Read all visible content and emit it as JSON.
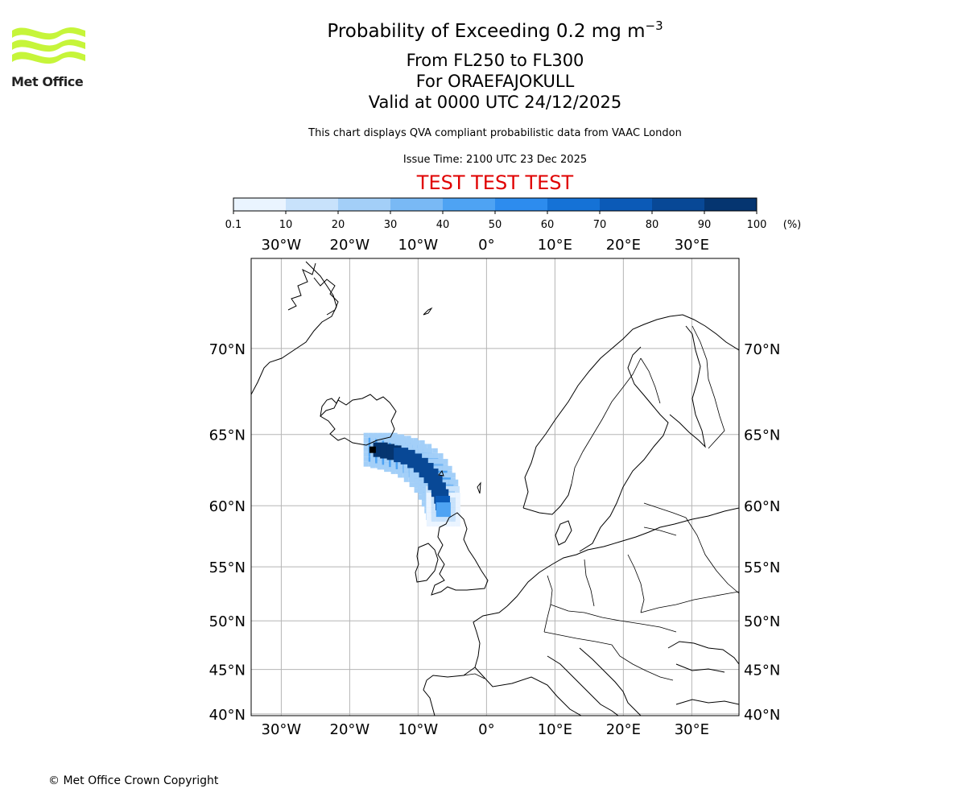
{
  "header": {
    "title_main": "Probability of Exceeding 0.2 mg m",
    "title_sup": "−3",
    "title_levels": "From FL250 to FL300",
    "title_volcano": "For ORAEFAJOKULL",
    "title_valid": "Valid at 0000 UTC 24/12/2025",
    "subtitle": "This chart displays QVA compliant probabilistic data from VAAC London",
    "issue_time": "Issue Time: 2100 UTC 23 Dec 2025",
    "test_banner": "TEST TEST TEST"
  },
  "logo": {
    "text": "Met Office",
    "color": "#c6f53a"
  },
  "colorbar": {
    "ticks": [
      "0.1",
      "10",
      "20",
      "30",
      "40",
      "50",
      "60",
      "70",
      "80",
      "90",
      "100"
    ],
    "unit": "(%)",
    "colors": [
      "#eaf4ff",
      "#c8e2fb",
      "#a3cff8",
      "#79b9f5",
      "#4ea3f3",
      "#2d8cee",
      "#1572d6",
      "#0b5ab7",
      "#084896",
      "#053570"
    ]
  },
  "map": {
    "lon_labels": [
      "30°W",
      "20°W",
      "10°W",
      "0°",
      "10°E",
      "20°E",
      "30°E"
    ],
    "lon_values": [
      -30,
      -20,
      -10,
      0,
      10,
      20,
      30
    ],
    "lat_labels": [
      "70°N",
      "65°N",
      "60°N",
      "55°N",
      "50°N",
      "45°N",
      "40°N"
    ],
    "lat_values": [
      70,
      65,
      60,
      55,
      50,
      45,
      40
    ],
    "lon_range": [
      -34.4,
      36.9
    ],
    "lat_range": [
      39.8,
      74.2
    ],
    "volcano": {
      "name": "ORAEFAJOKULL",
      "lon": -16.65,
      "lat": 64.0
    },
    "plume": [
      {
        "lon": -15.5,
        "lat": 64.0,
        "prob": 95
      },
      {
        "lon": -14.5,
        "lat": 63.9,
        "prob": 92
      },
      {
        "lon": -13.5,
        "lat": 63.8,
        "prob": 90
      },
      {
        "lon": -12.5,
        "lat": 63.65,
        "prob": 88
      },
      {
        "lon": -11.5,
        "lat": 63.5,
        "prob": 86
      },
      {
        "lon": -10.5,
        "lat": 63.25,
        "prob": 85
      },
      {
        "lon": -9.6,
        "lat": 62.95,
        "prob": 84
      },
      {
        "lon": -8.8,
        "lat": 62.6,
        "prob": 84
      },
      {
        "lon": -8.1,
        "lat": 62.2,
        "prob": 85
      },
      {
        "lon": -7.5,
        "lat": 61.7,
        "prob": 86
      },
      {
        "lon": -7.0,
        "lat": 61.2,
        "prob": 86
      },
      {
        "lon": -6.6,
        "lat": 60.7,
        "prob": 84
      },
      {
        "lon": -6.4,
        "lat": 60.2,
        "prob": 70
      },
      {
        "lon": -6.3,
        "lat": 59.7,
        "prob": 45
      }
    ]
  },
  "footer": {
    "copyright": "© Met Office Crown Copyright"
  }
}
